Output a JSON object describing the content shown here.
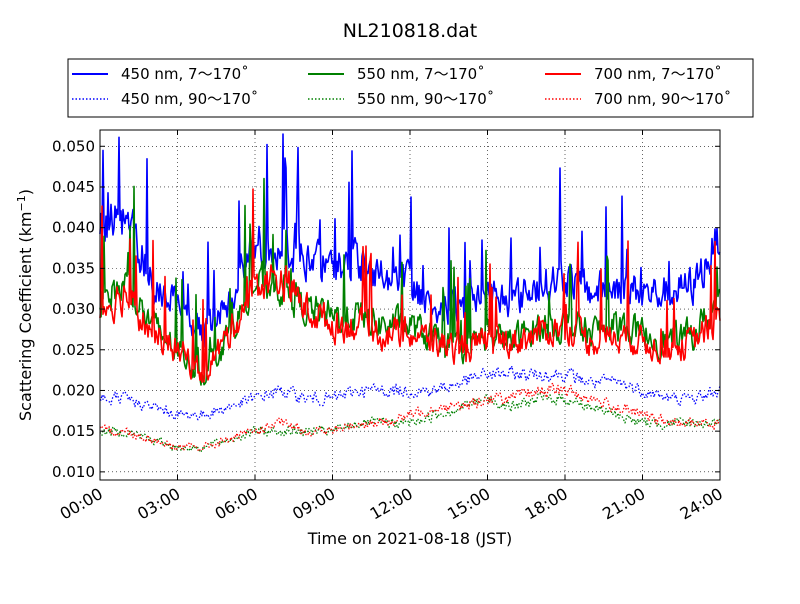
{
  "chart_data": {
    "type": "line",
    "title": "NL210818.dat",
    "xlabel": "Time on 2021-08-18 (JST)",
    "ylabel_main": "Scattering Coefficient (km",
    "ylabel_sup": "−1",
    "ylabel_close": ")",
    "xlim": [
      "2021-08-18 00:00",
      "2021-08-19 00:00"
    ],
    "xlim_hours": [
      0,
      24
    ],
    "ylim": [
      0.009,
      0.052
    ],
    "grid": true,
    "grid_style": "dotted",
    "legend_position": "top (above plot, 3 columns)",
    "x_ticks": [
      {
        "hour": 0,
        "label": "00:00"
      },
      {
        "hour": 3,
        "label": "03:00"
      },
      {
        "hour": 6,
        "label": "06:00"
      },
      {
        "hour": 9,
        "label": "09:00"
      },
      {
        "hour": 12,
        "label": "12:00"
      },
      {
        "hour": 15,
        "label": "15:00"
      },
      {
        "hour": 18,
        "label": "18:00"
      },
      {
        "hour": 21,
        "label": "21:00"
      },
      {
        "hour": 24,
        "label": "24:00"
      }
    ],
    "y_ticks": [
      {
        "value": 0.01,
        "label": "0.010"
      },
      {
        "value": 0.015,
        "label": "0.015"
      },
      {
        "value": 0.02,
        "label": "0.020"
      },
      {
        "value": 0.025,
        "label": "0.025"
      },
      {
        "value": 0.03,
        "label": "0.030"
      },
      {
        "value": 0.035,
        "label": "0.035"
      },
      {
        "value": 0.04,
        "label": "0.040"
      },
      {
        "value": 0.045,
        "label": "0.045"
      },
      {
        "value": 0.05,
        "label": "0.050"
      }
    ],
    "x": [
      0,
      1,
      2,
      3,
      4,
      5,
      6,
      7,
      8,
      9,
      10,
      11,
      12,
      13,
      14,
      15,
      16,
      17,
      18,
      19,
      20,
      21,
      22,
      23,
      24
    ],
    "series": [
      {
        "name": "450 nm, 7～170˚",
        "color": "#0000ff",
        "style": "solid",
        "values": [
          0.04,
          0.041,
          0.034,
          0.03,
          0.027,
          0.031,
          0.038,
          0.038,
          0.036,
          0.035,
          0.036,
          0.034,
          0.033,
          0.03,
          0.03,
          0.032,
          0.031,
          0.033,
          0.034,
          0.032,
          0.033,
          0.032,
          0.032,
          0.033,
          0.039
        ]
      },
      {
        "name": "450 nm, 90～170˚",
        "color": "#0000ff",
        "style": "dotted",
        "values": [
          0.019,
          0.019,
          0.018,
          0.017,
          0.017,
          0.018,
          0.019,
          0.02,
          0.019,
          0.019,
          0.02,
          0.02,
          0.02,
          0.02,
          0.021,
          0.022,
          0.022,
          0.022,
          0.022,
          0.021,
          0.021,
          0.02,
          0.019,
          0.019,
          0.02
        ]
      },
      {
        "name": "550 nm, 7～170˚",
        "color": "#008000",
        "style": "solid",
        "values": [
          0.031,
          0.033,
          0.028,
          0.025,
          0.022,
          0.027,
          0.033,
          0.033,
          0.03,
          0.029,
          0.029,
          0.028,
          0.028,
          0.026,
          0.025,
          0.027,
          0.026,
          0.028,
          0.028,
          0.027,
          0.028,
          0.027,
          0.026,
          0.027,
          0.031
        ]
      },
      {
        "name": "550 nm, 90～170˚",
        "color": "#008000",
        "style": "dotted",
        "values": [
          0.015,
          0.015,
          0.014,
          0.013,
          0.013,
          0.014,
          0.015,
          0.015,
          0.015,
          0.015,
          0.016,
          0.016,
          0.016,
          0.017,
          0.018,
          0.019,
          0.018,
          0.019,
          0.019,
          0.018,
          0.017,
          0.016,
          0.016,
          0.016,
          0.016
        ]
      },
      {
        "name": "700 nm, 7～170˚",
        "color": "#ff0000",
        "style": "solid",
        "values": [
          0.03,
          0.032,
          0.027,
          0.025,
          0.022,
          0.027,
          0.033,
          0.034,
          0.03,
          0.028,
          0.028,
          0.027,
          0.027,
          0.026,
          0.025,
          0.026,
          0.026,
          0.027,
          0.028,
          0.026,
          0.027,
          0.026,
          0.025,
          0.026,
          0.029
        ]
      },
      {
        "name": "700 nm, 90～170˚",
        "color": "#ff0000",
        "style": "dotted",
        "values": [
          0.015,
          0.015,
          0.014,
          0.013,
          0.013,
          0.014,
          0.015,
          0.016,
          0.015,
          0.015,
          0.016,
          0.016,
          0.017,
          0.018,
          0.018,
          0.019,
          0.019,
          0.02,
          0.02,
          0.019,
          0.018,
          0.017,
          0.016,
          0.016,
          0.016
        ]
      }
    ]
  }
}
